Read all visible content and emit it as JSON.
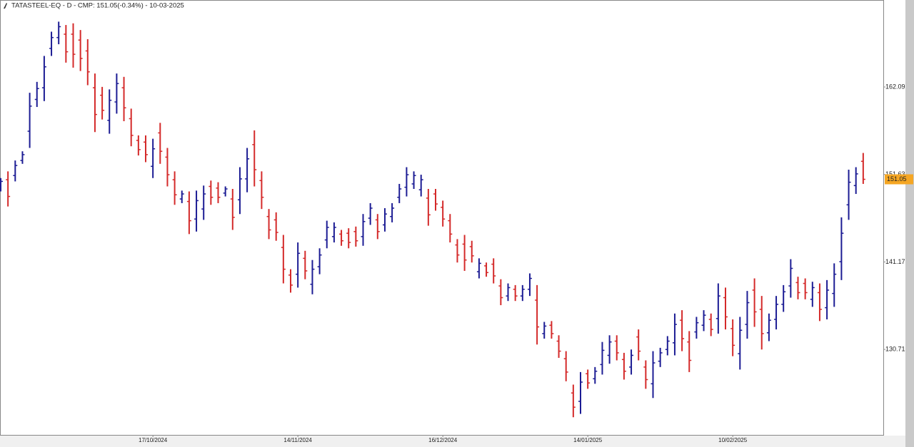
{
  "chart_data": {
    "type": "ohlc",
    "title": "TATASTEEL-EQ - D - CMP: 151.05(-0.34%) - 10-03-2025",
    "categories": [
      null,
      null,
      null,
      null,
      null,
      null,
      null,
      null,
      null,
      null,
      null,
      null,
      null,
      null,
      null,
      null,
      null,
      null,
      null,
      null,
      null,
      "17/10/2024",
      null,
      null,
      null,
      null,
      null,
      null,
      null,
      null,
      null,
      null,
      null,
      null,
      null,
      null,
      null,
      null,
      null,
      null,
      null,
      "14/11/2024",
      null,
      null,
      null,
      null,
      null,
      null,
      null,
      null,
      null,
      null,
      null,
      null,
      null,
      null,
      null,
      null,
      null,
      null,
      null,
      "16/12/2024",
      null,
      null,
      null,
      null,
      null,
      null,
      null,
      null,
      null,
      null,
      null,
      null,
      null,
      null,
      null,
      null,
      null,
      null,
      null,
      "14/01/2025",
      null,
      null,
      null,
      null,
      null,
      null,
      null,
      null,
      null,
      null,
      null,
      null,
      null,
      null,
      null,
      null,
      null,
      null,
      null,
      "10/02/2025",
      null,
      null,
      null,
      null,
      null,
      null,
      null,
      null,
      null,
      null,
      null,
      null,
      null,
      null,
      null,
      null,
      null,
      null
    ],
    "open": [
      150.1,
      151.0,
      151.5,
      153.3,
      156.8,
      160.6,
      162.0,
      166.7,
      168.0,
      168.4,
      168.4,
      167.7,
      166.4,
      162.0,
      161.1,
      158.1,
      160.3,
      162.0,
      158.3,
      155.7,
      155.5,
      152.6,
      156.6,
      153.7,
      151.0,
      148.7,
      148.4,
      146.3,
      147.5,
      150.2,
      150.0,
      149.4,
      148.7,
      148.6,
      151.1,
      155.2,
      150.9,
      146.6,
      146.2,
      142.9,
      139.6,
      139.7,
      141.6,
      138.5,
      140.6,
      143.8,
      144.2,
      144.5,
      144.6,
      144.8,
      144.2,
      146.4,
      146.2,
      145.6,
      146.6,
      148.9,
      150.1,
      150.5,
      149.8,
      148.8,
      149.3,
      147.7,
      146.1,
      143.2,
      143.3,
      143.0,
      140.0,
      140.7,
      140.9,
      138.3,
      137.1,
      137.9,
      137.1,
      137.9,
      136.6,
      132.6,
      133.6,
      131.7,
      129.6,
      125.5,
      124.5,
      127.8,
      127.2,
      128.9,
      130.0,
      131.7,
      129.5,
      128.6,
      132.2,
      128.6,
      126.6,
      129.3,
      130.7,
      131.5,
      134.2,
      131.6,
      132.8,
      133.6,
      134.3,
      134.4,
      136.9,
      133.2,
      130.2,
      133.7,
      137.8,
      135.5,
      132.7,
      134.3,
      136.1,
      138.3,
      138.7,
      138.6,
      136.7,
      137.5,
      135.7,
      137.4,
      141.2,
      148.0,
      150.3,
      153.2
    ],
    "high": [
      151.2,
      152.0,
      153.3,
      154.4,
      161.4,
      162.7,
      165.8,
      168.7,
      169.9,
      169.5,
      169.7,
      168.9,
      167.8,
      163.7,
      162.1,
      161.8,
      163.7,
      163.3,
      159.5,
      156.3,
      156.3,
      155.9,
      157.8,
      154.8,
      152.0,
      149.7,
      149.6,
      149.7,
      150.3,
      150.9,
      150.7,
      150.2,
      149.9,
      152.5,
      154.8,
      156.9,
      152.0,
      147.5,
      147.1,
      144.4,
      140.3,
      143.5,
      142.5,
      141.4,
      142.8,
      146.1,
      145.9,
      145.0,
      145.2,
      145.4,
      146.9,
      148.2,
      146.9,
      147.6,
      148.2,
      150.5,
      152.5,
      152.0,
      151.6,
      149.9,
      149.9,
      148.5,
      146.9,
      143.9,
      144.4,
      143.7,
      141.6,
      141.1,
      141.6,
      139.1,
      138.6,
      138.4,
      138.4,
      139.8,
      138.4,
      134.0,
      134.1,
      132.4,
      130.5,
      126.5,
      128.0,
      128.3,
      128.6,
      131.6,
      132.4,
      132.4,
      130.3,
      130.7,
      133.1,
      129.4,
      130.5,
      130.9,
      132.3,
      135.0,
      135.4,
      132.9,
      134.6,
      135.4,
      135.0,
      138.6,
      138.1,
      134.3,
      134.6,
      137.7,
      139.2,
      137.1,
      135.0,
      137.1,
      138.4,
      141.5,
      139.4,
      139.2,
      138.8,
      138.6,
      139.0,
      141.0,
      146.5,
      152.2,
      152.5,
      154.2
    ],
    "low": [
      149.6,
      147.8,
      150.8,
      152.9,
      154.8,
      159.7,
      160.4,
      165.8,
      167.2,
      165.0,
      164.4,
      164.0,
      162.3,
      156.7,
      158.2,
      156.5,
      158.9,
      158.0,
      155.0,
      153.9,
      153.1,
      151.2,
      152.9,
      150.2,
      148.0,
      148.2,
      144.5,
      144.8,
      146.2,
      148.0,
      148.2,
      149.0,
      145.0,
      146.9,
      149.5,
      150.2,
      147.5,
      143.9,
      143.7,
      138.6,
      137.5,
      138.1,
      139.1,
      137.3,
      139.7,
      142.8,
      143.5,
      143.1,
      142.8,
      143.0,
      143.1,
      145.6,
      143.9,
      144.8,
      145.9,
      148.2,
      149.0,
      149.9,
      149.0,
      145.5,
      147.3,
      145.4,
      143.5,
      141.1,
      140.1,
      141.1,
      139.2,
      139.4,
      138.6,
      136.0,
      136.5,
      136.5,
      136.5,
      137.1,
      131.3,
      132.0,
      132.0,
      129.7,
      126.9,
      122.6,
      123.0,
      126.0,
      126.6,
      127.7,
      129.0,
      129.4,
      127.1,
      127.7,
      129.4,
      126.0,
      124.9,
      128.6,
      130.0,
      130.0,
      130.5,
      128.0,
      132.0,
      132.9,
      132.3,
      132.6,
      133.1,
      129.9,
      128.3,
      132.0,
      133.4,
      130.7,
      131.7,
      133.1,
      135.2,
      136.9,
      136.7,
      136.7,
      135.8,
      134.1,
      134.3,
      135.8,
      139.0,
      146.2,
      149.3,
      150.5
    ],
    "close": [
      150.8,
      149.0,
      152.7,
      154.0,
      159.8,
      161.9,
      164.5,
      168.0,
      169.3,
      166.3,
      166.0,
      165.5,
      163.9,
      158.8,
      159.3,
      160.5,
      162.5,
      159.6,
      156.3,
      154.6,
      154.0,
      154.7,
      154.4,
      151.6,
      149.2,
      149.3,
      146.1,
      148.5,
      149.3,
      148.9,
      148.9,
      149.9,
      146.5,
      151.1,
      153.5,
      152.2,
      148.9,
      145.0,
      144.7,
      140.3,
      138.4,
      142.2,
      140.1,
      140.3,
      142.0,
      145.3,
      145.3,
      143.7,
      143.5,
      143.7,
      146.0,
      147.6,
      144.8,
      146.9,
      147.6,
      149.9,
      151.6,
      151.5,
      151.0,
      146.8,
      148.1,
      146.3,
      144.5,
      142.0,
      141.4,
      141.9,
      141.0,
      139.9,
      139.5,
      136.9,
      138.1,
      137.1,
      137.9,
      139.2,
      133.4,
      133.5,
      132.6,
      130.5,
      128.0,
      123.8,
      126.8,
      126.7,
      128.1,
      130.6,
      131.6,
      130.3,
      128.1,
      130.0,
      130.5,
      127.1,
      129.1,
      130.3,
      131.7,
      133.7,
      132.0,
      129.4,
      133.9,
      134.8,
      133.1,
      137.1,
      134.6,
      131.2,
      133.0,
      136.3,
      135.2,
      132.6,
      134.2,
      136.1,
      137.6,
      140.4,
      137.5,
      137.5,
      138.1,
      135.5,
      137.8,
      139.7,
      144.6,
      150.7,
      151.7,
      151.05
    ],
    "up_color": "#1c1c94",
    "down_color": "#d42a2a",
    "last_price": 151.05,
    "last_price_color": "#f5a623",
    "ylim": [
      120.49,
      172.49
    ],
    "yticks": [
      130.71,
      141.17,
      151.63,
      162.09
    ],
    "y_axis_side": "right"
  }
}
